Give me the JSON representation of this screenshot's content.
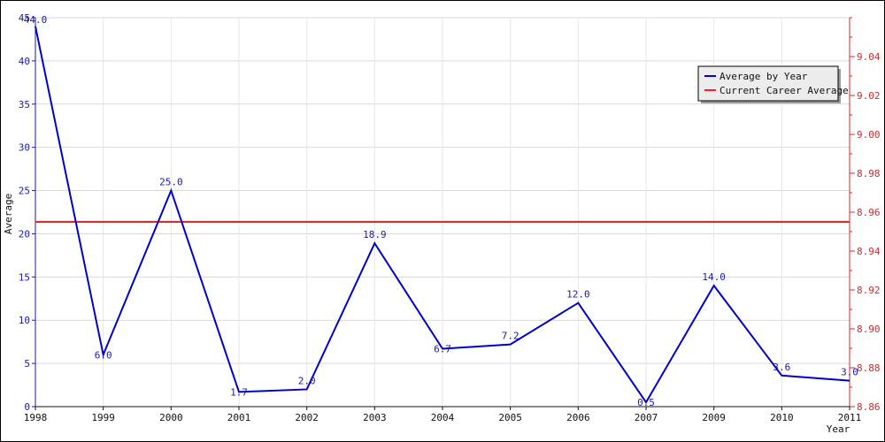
{
  "chart_data": {
    "type": "line",
    "title": "",
    "xlabel": "Year",
    "ylabel": "Average",
    "categories": [
      "1998",
      "1999",
      "2000",
      "2001",
      "2002",
      "2003",
      "2004",
      "2005",
      "2006",
      "2007",
      "2009",
      "2010",
      "2011"
    ],
    "ylim": [
      0,
      45
    ],
    "y_ticks": [
      0,
      5,
      10,
      15,
      20,
      25,
      30,
      35,
      40,
      45
    ],
    "y2lim": [
      8.86,
      9.06
    ],
    "y2_ticks": [
      "8.86",
      "8.88",
      "8.90",
      "8.92",
      "8.94",
      "8.96",
      "8.98",
      "9.00",
      "9.02",
      "9.04"
    ],
    "grid": true,
    "legend_position": "top-right",
    "series": [
      {
        "name": "Average by Year",
        "color": "#0000cc",
        "axis": "left",
        "values": [
          44.0,
          6.0,
          25.0,
          1.7,
          2.0,
          18.9,
          6.7,
          7.2,
          12.0,
          0.5,
          14.0,
          3.6,
          3.0
        ],
        "labels": [
          "44.0",
          "6.0",
          "25.0",
          "1.7",
          "2.0",
          "18.9",
          "6.7",
          "7.2",
          "12.0",
          "0.5",
          "14.0",
          "3.6",
          "3.0"
        ]
      },
      {
        "name": "Current Career Average",
        "color": "#ee2222",
        "axis": "right",
        "value": 8.955
      }
    ]
  }
}
